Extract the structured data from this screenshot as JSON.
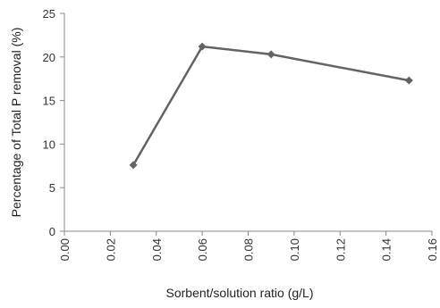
{
  "chart_data": {
    "type": "line",
    "xlabel": "Sorbent/solution ratio (g/L)",
    "ylabel": "Percentage of Total P removal (%)",
    "xlim": [
      0,
      0.16
    ],
    "ylim": [
      0,
      25
    ],
    "x_ticks": [
      "0.00",
      "0.02",
      "0.04",
      "0.06",
      "0.08",
      "0.10",
      "0.12",
      "0.14",
      "0.16"
    ],
    "y_ticks": [
      "0",
      "5",
      "10",
      "15",
      "20",
      "25"
    ],
    "x_tick_values": [
      0,
      0.02,
      0.04,
      0.06,
      0.08,
      0.1,
      0.12,
      0.14,
      0.16
    ],
    "y_tick_values": [
      0,
      5,
      10,
      15,
      20,
      25
    ],
    "series": [
      {
        "x": [
          0.03,
          0.06,
          0.09,
          0.15
        ],
        "values": [
          7.6,
          21.2,
          20.3,
          17.3
        ]
      }
    ],
    "line_color": "#636363",
    "marker": "diamond",
    "grid": false,
    "legend": "none"
  }
}
